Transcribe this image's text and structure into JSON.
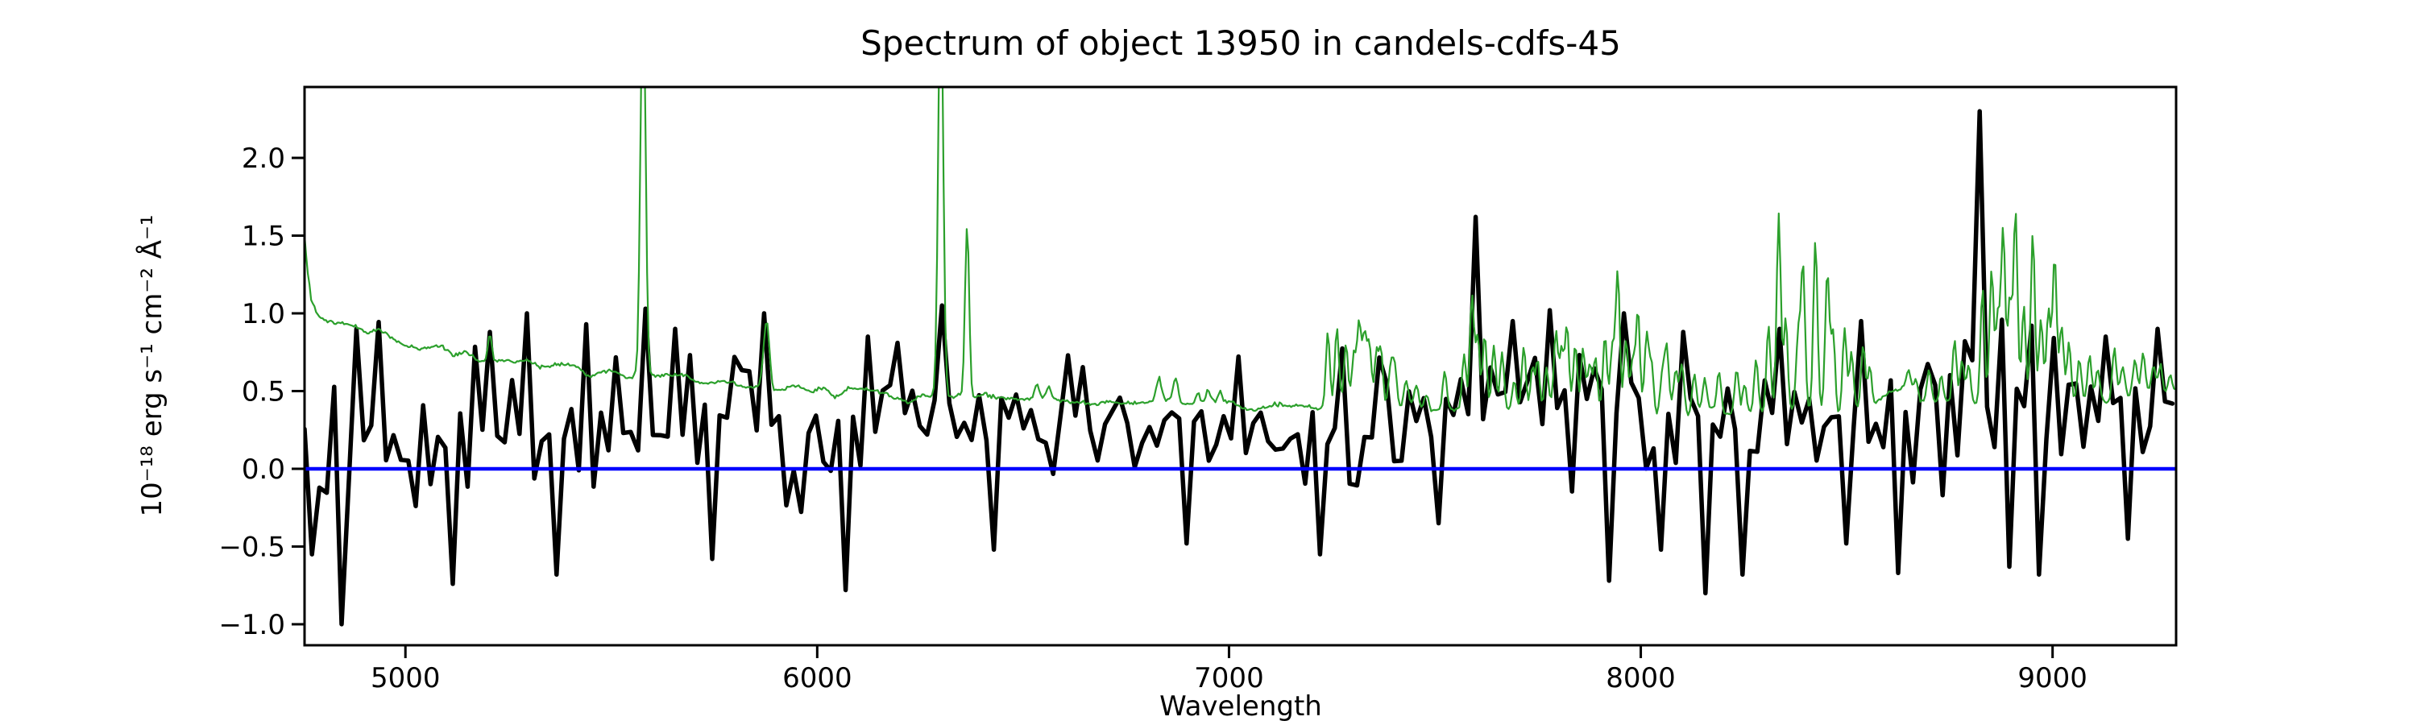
{
  "chart_data": {
    "type": "line",
    "title": "Spectrum of object 13950 in candels-cdfs-45",
    "xlabel": "Wavelength",
    "ylabel": "10⁻¹⁸ erg s⁻¹ cm⁻² Å⁻¹",
    "xlim": [
      4755,
      9300
    ],
    "ylim": [
      -1.135,
      2.456
    ],
    "xticks": [
      5000,
      6000,
      7000,
      8000,
      9000
    ],
    "xtick_labels": [
      "5000",
      "6000",
      "7000",
      "8000",
      "9000"
    ],
    "yticks": [
      -1.0,
      -0.5,
      0.0,
      0.5,
      1.0,
      1.5,
      2.0
    ],
    "ytick_labels": [
      "−1.0",
      "−0.5",
      "0.0",
      "0.5",
      "1.0",
      "1.5",
      "2.0"
    ],
    "grid": false,
    "legend": null,
    "background": "#ffffff",
    "spine_color": "#000000",
    "series": [
      {
        "name": "object-flux",
        "color": "#000000",
        "linewidth": 5.5,
        "sample_step": 18,
        "mean_anchors": [
          [
            4755,
            0.08
          ],
          [
            4900,
            0.12
          ],
          [
            5000,
            0.13
          ],
          [
            5150,
            0.15
          ],
          [
            5300,
            0.17
          ],
          [
            5450,
            0.2
          ],
          [
            5600,
            0.24
          ],
          [
            5750,
            0.24
          ],
          [
            5900,
            0.28
          ],
          [
            6050,
            0.27
          ],
          [
            6200,
            0.31
          ],
          [
            6350,
            0.33
          ],
          [
            6500,
            0.31
          ],
          [
            6650,
            0.31
          ],
          [
            6800,
            0.29
          ],
          [
            6950,
            0.3
          ],
          [
            7100,
            0.31
          ],
          [
            7250,
            0.29
          ],
          [
            7400,
            0.32
          ],
          [
            7550,
            0.34
          ],
          [
            7700,
            0.38
          ],
          [
            7850,
            0.34
          ],
          [
            8000,
            0.33
          ],
          [
            8150,
            0.31
          ],
          [
            8300,
            0.36
          ],
          [
            8450,
            0.37
          ],
          [
            8600,
            0.34
          ],
          [
            8750,
            0.38
          ],
          [
            8900,
            0.42
          ],
          [
            9050,
            0.35
          ],
          [
            9200,
            0.35
          ],
          [
            9300,
            0.35
          ]
        ],
        "sigma_anchors": [
          [
            4755,
            0.34
          ],
          [
            4900,
            0.38
          ],
          [
            5050,
            0.28
          ],
          [
            5200,
            0.3
          ],
          [
            5350,
            0.3
          ],
          [
            5500,
            0.28
          ],
          [
            5650,
            0.28
          ],
          [
            5800,
            0.28
          ],
          [
            5950,
            0.24
          ],
          [
            6100,
            0.27
          ],
          [
            6250,
            0.24
          ],
          [
            6400,
            0.21
          ],
          [
            6550,
            0.19
          ],
          [
            6700,
            0.19
          ],
          [
            6850,
            0.21
          ],
          [
            7000,
            0.18
          ],
          [
            7150,
            0.19
          ],
          [
            7300,
            0.23
          ],
          [
            7450,
            0.2
          ],
          [
            7600,
            0.24
          ],
          [
            7750,
            0.27
          ],
          [
            7900,
            0.28
          ],
          [
            8050,
            0.28
          ],
          [
            8200,
            0.3
          ],
          [
            8350,
            0.27
          ],
          [
            8500,
            0.27
          ],
          [
            8650,
            0.28
          ],
          [
            8800,
            0.33
          ],
          [
            8950,
            0.33
          ],
          [
            9100,
            0.26
          ],
          [
            9300,
            0.28
          ]
        ],
        "peaks": [
          [
            4826,
            0.95
          ],
          [
            4876,
            0.9
          ],
          [
            5200,
            0.88
          ],
          [
            5297,
            1.0
          ],
          [
            5430,
            0.93
          ],
          [
            5580,
            1.03
          ],
          [
            5660,
            0.9
          ],
          [
            5877,
            1.0
          ],
          [
            6130,
            0.85
          ],
          [
            6299,
            1.05
          ],
          [
            6610,
            0.73
          ],
          [
            7607,
            1.62
          ],
          [
            7680,
            0.95
          ],
          [
            7770,
            1.02
          ],
          [
            7967,
            1.0
          ],
          [
            8100,
            0.88
          ],
          [
            8345,
            0.9
          ],
          [
            8530,
            0.95
          ],
          [
            8816,
            2.3
          ],
          [
            8874,
            1.5
          ],
          [
            8940,
            1.45
          ],
          [
            9125,
            0.85
          ],
          [
            9262,
            0.9
          ]
        ],
        "dips": [
          [
            4770,
            -0.55
          ],
          [
            4843,
            -1.0
          ],
          [
            5120,
            -0.74
          ],
          [
            5360,
            -0.68
          ],
          [
            5740,
            -0.58
          ],
          [
            6070,
            -0.78
          ],
          [
            6420,
            -0.52
          ],
          [
            6900,
            -0.48
          ],
          [
            7226,
            -0.55
          ],
          [
            7500,
            -0.35
          ],
          [
            7918,
            -0.72
          ],
          [
            8053,
            -0.52
          ],
          [
            8165,
            -0.8
          ],
          [
            8240,
            -0.68
          ],
          [
            8500,
            -0.48
          ],
          [
            8623,
            -0.67
          ],
          [
            8892,
            -0.63
          ],
          [
            8964,
            -0.68
          ],
          [
            9180,
            -0.45
          ]
        ]
      },
      {
        "name": "sky-noise-spectrum",
        "color": "#2ca02c",
        "linewidth": 2.2,
        "sample_step": 4,
        "continuum_anchors": [
          [
            4755,
            1.52
          ],
          [
            4763,
            1.28
          ],
          [
            4772,
            1.1
          ],
          [
            4785,
            1.0
          ],
          [
            4800,
            0.96
          ],
          [
            4830,
            0.93
          ],
          [
            4870,
            0.93
          ],
          [
            4910,
            0.9
          ],
          [
            4950,
            0.87
          ],
          [
            5000,
            0.78
          ],
          [
            5060,
            0.76
          ],
          [
            5120,
            0.74
          ],
          [
            5205,
            0.715
          ],
          [
            5300,
            0.68
          ],
          [
            5400,
            0.655
          ],
          [
            5500,
            0.62
          ],
          [
            5600,
            0.585
          ],
          [
            5700,
            0.56
          ],
          [
            5800,
            0.545
          ],
          [
            5900,
            0.525
          ],
          [
            6000,
            0.51
          ],
          [
            6100,
            0.5
          ],
          [
            6200,
            0.485
          ],
          [
            6300,
            0.475
          ],
          [
            6400,
            0.46
          ],
          [
            6500,
            0.455
          ],
          [
            6600,
            0.445
          ],
          [
            6700,
            0.435
          ],
          [
            6800,
            0.425
          ],
          [
            6900,
            0.415
          ],
          [
            7000,
            0.41
          ],
          [
            7100,
            0.4
          ],
          [
            7200,
            0.395
          ],
          [
            7300,
            0.39
          ],
          [
            7400,
            0.385
          ],
          [
            7500,
            0.38
          ],
          [
            7600,
            0.378
          ],
          [
            7700,
            0.375
          ],
          [
            7800,
            0.37
          ],
          [
            7900,
            0.365
          ],
          [
            8000,
            0.36
          ],
          [
            8100,
            0.36
          ],
          [
            8200,
            0.36
          ],
          [
            8300,
            0.365
          ],
          [
            8400,
            0.37
          ],
          [
            8500,
            0.375
          ],
          [
            8560,
            0.4
          ],
          [
            8600,
            0.5
          ],
          [
            8640,
            0.52
          ],
          [
            8670,
            0.44
          ],
          [
            8700,
            0.41
          ],
          [
            8760,
            0.4
          ],
          [
            8820,
            0.41
          ],
          [
            8880,
            0.42
          ],
          [
            8940,
            0.42
          ],
          [
            9000,
            0.43
          ],
          [
            9060,
            0.44
          ],
          [
            9120,
            0.455
          ],
          [
            9180,
            0.465
          ],
          [
            9240,
            0.48
          ],
          [
            9300,
            0.5
          ]
        ],
        "spikes": [
          [
            5205,
            0.9,
            5
          ],
          [
            5577,
            3.2,
            6
          ],
          [
            5877,
            0.97,
            7
          ],
          [
            6300,
            3.2,
            6
          ],
          [
            6364,
            1.58,
            5
          ],
          [
            6533,
            0.55,
            5
          ],
          [
            6562,
            0.52,
            5
          ],
          [
            6830,
            0.57,
            6
          ],
          [
            6870,
            0.57,
            6
          ],
          [
            6923,
            0.49,
            5
          ],
          [
            6950,
            0.48,
            5
          ],
          [
            6978,
            0.48,
            5
          ],
          [
            7240,
            0.88,
            5
          ],
          [
            7262,
            0.92,
            5
          ],
          [
            7284,
            0.8,
            5
          ],
          [
            7303,
            0.72,
            5
          ],
          [
            7316,
            0.93,
            5
          ],
          [
            7329,
            0.86,
            5
          ],
          [
            7341,
            0.8,
            5
          ],
          [
            7358,
            0.73,
            5
          ],
          [
            7369,
            0.76,
            5
          ],
          [
            7392,
            0.63,
            5
          ],
          [
            7402,
            0.66,
            5
          ],
          [
            7430,
            0.56,
            5
          ],
          [
            7455,
            0.51,
            5
          ],
          [
            7480,
            0.49,
            5
          ],
          [
            7524,
            0.63,
            5
          ],
          [
            7571,
            0.74,
            5
          ],
          [
            7590,
            1.12,
            5
          ],
          [
            7604,
            0.86,
            5
          ],
          [
            7621,
            0.87,
            5
          ],
          [
            7643,
            0.81,
            5
          ],
          [
            7663,
            0.74,
            5
          ],
          [
            7693,
            0.57,
            5
          ],
          [
            7716,
            0.8,
            5
          ],
          [
            7737,
            0.66,
            5
          ],
          [
            7750,
            0.71,
            5
          ],
          [
            7771,
            0.64,
            5
          ],
          [
            7794,
            0.87,
            5
          ],
          [
            7808,
            0.76,
            5
          ],
          [
            7821,
            0.92,
            5
          ],
          [
            7841,
            0.81,
            5
          ],
          [
            7860,
            0.77,
            5
          ],
          [
            7876,
            0.66,
            5
          ],
          [
            7890,
            0.72,
            5
          ],
          [
            7913,
            0.87,
            5
          ],
          [
            7931,
            0.76,
            5
          ],
          [
            7944,
            1.26,
            5
          ],
          [
            7964,
            0.87,
            5
          ],
          [
            7980,
            0.71,
            5
          ],
          [
            7993,
            1.01,
            5
          ],
          [
            8014,
            0.87,
            5
          ],
          [
            8026,
            0.71,
            5
          ],
          [
            8052,
            0.61,
            5
          ],
          [
            8063,
            0.77,
            5
          ],
          [
            8085,
            0.61,
            5
          ],
          [
            8100,
            0.67,
            5
          ],
          [
            8130,
            0.61,
            5
          ],
          [
            8155,
            0.56,
            5
          ],
          [
            8190,
            0.61,
            5
          ],
          [
            8233,
            0.67,
            5
          ],
          [
            8252,
            0.56,
            5
          ],
          [
            8280,
            0.72,
            5
          ],
          [
            8310,
            0.92,
            5
          ],
          [
            8335,
            1.63,
            5
          ],
          [
            8352,
            0.96,
            5
          ],
          [
            8382,
            0.86,
            5
          ],
          [
            8394,
            1.31,
            5
          ],
          [
            8424,
            1.46,
            5
          ],
          [
            8453,
            1.27,
            5
          ],
          [
            8467,
            0.91,
            5
          ],
          [
            8495,
            0.93,
            5
          ],
          [
            8512,
            0.76,
            5
          ],
          [
            8540,
            0.81,
            5
          ],
          [
            8556,
            0.66,
            5
          ],
          [
            8650,
            0.62,
            5
          ],
          [
            8668,
            0.57,
            5
          ],
          [
            8700,
            0.63,
            5
          ],
          [
            8730,
            0.57,
            5
          ],
          [
            8762,
            0.83,
            5
          ],
          [
            8780,
            0.72,
            5
          ],
          [
            8796,
            0.66,
            5
          ],
          [
            8830,
            1.13,
            5
          ],
          [
            8852,
            1.29,
            5
          ],
          [
            8867,
            1.01,
            5
          ],
          [
            8880,
            1.57,
            5
          ],
          [
            8896,
            1.11,
            5
          ],
          [
            8910,
            1.67,
            5
          ],
          [
            8930,
            1.06,
            5
          ],
          [
            8952,
            1.52,
            5
          ],
          [
            8972,
            0.96,
            5
          ],
          [
            8990,
            1.01,
            5
          ],
          [
            9005,
            1.36,
            5
          ],
          [
            9022,
            0.91,
            5
          ],
          [
            9040,
            0.83,
            5
          ],
          [
            9065,
            0.71,
            5
          ],
          [
            9090,
            0.73,
            5
          ],
          [
            9110,
            0.66,
            5
          ],
          [
            9150,
            0.79,
            5
          ],
          [
            9170,
            0.66,
            5
          ],
          [
            9200,
            0.69,
            5
          ],
          [
            9220,
            0.73,
            5
          ],
          [
            9245,
            0.66,
            5
          ],
          [
            9262,
            0.69,
            5
          ],
          [
            9285,
            0.62,
            5
          ]
        ]
      },
      {
        "name": "zero-line",
        "color": "#0000ff",
        "linewidth": 4.5,
        "y": 0.0
      }
    ]
  }
}
